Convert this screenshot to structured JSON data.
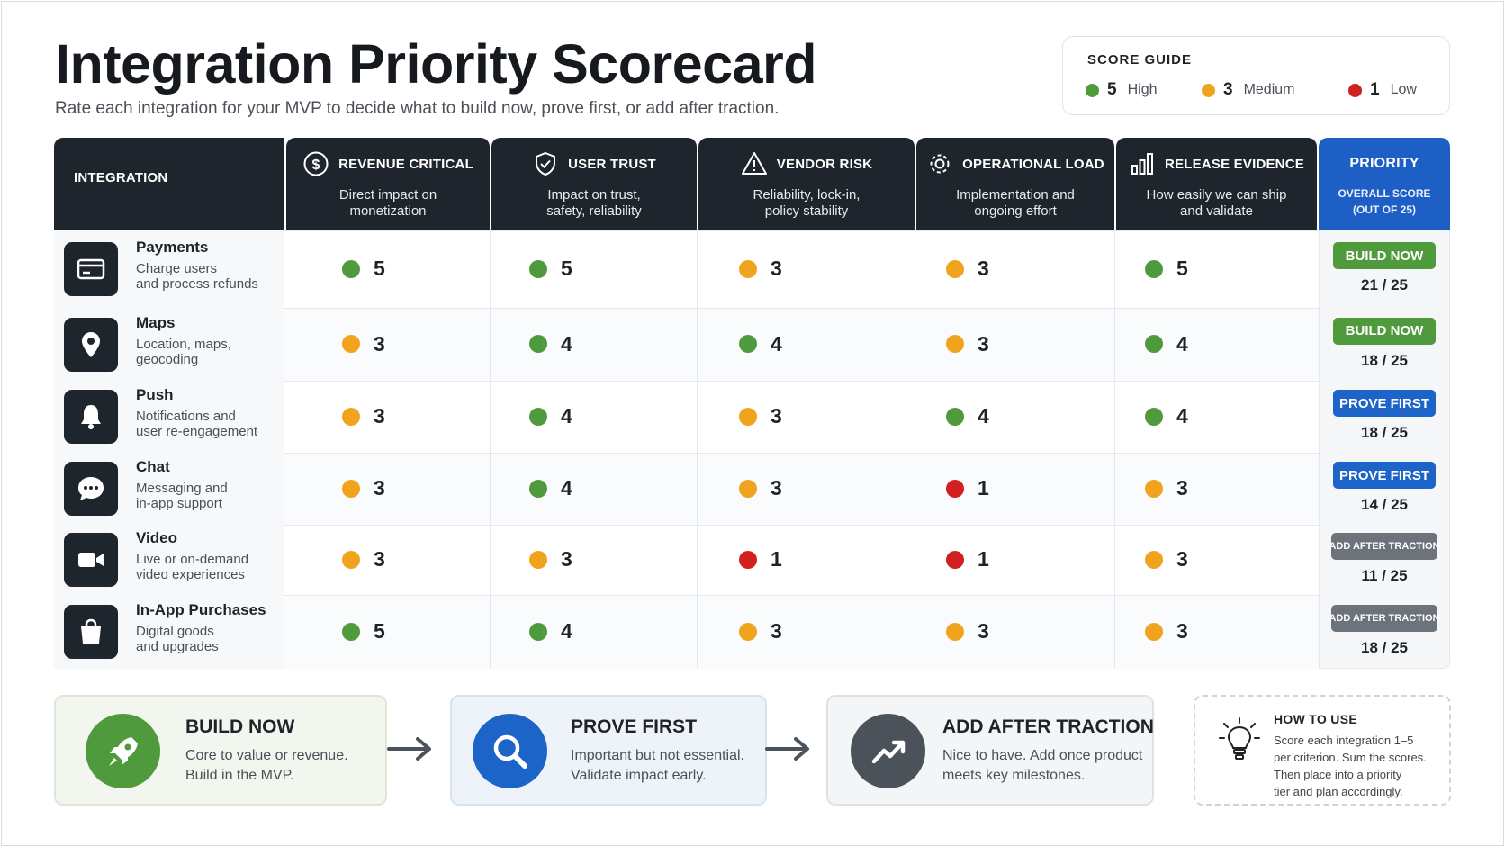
{
  "title": "Integration Priority Scorecard",
  "subtitle": "Rate each integration for your MVP to decide what to build now, prove first, or add after traction.",
  "score_guide": {
    "title": "SCORE GUIDE",
    "items": [
      {
        "value": "5",
        "label": "High",
        "color": "#4f9a3c"
      },
      {
        "value": "3",
        "label": "Medium",
        "color": "#f0a41d"
      },
      {
        "value": "1",
        "label": "Low",
        "color": "#d21f1f"
      }
    ]
  },
  "table": {
    "first_header": "INTEGRATION",
    "criteria": [
      {
        "title": "REVENUE CRITICAL",
        "desc1": "Direct impact on",
        "desc2": "monetization",
        "icon": "dollar-icon"
      },
      {
        "title": "USER TRUST",
        "desc1": "Impact on trust,",
        "desc2": "safety, reliability",
        "icon": "shield-icon"
      },
      {
        "title": "VENDOR RISK",
        "desc1": "Reliability, lock-in,",
        "desc2": "policy stability",
        "icon": "warning-icon"
      },
      {
        "title": "OPERATIONAL LOAD",
        "desc1": "Implementation and",
        "desc2": "ongoing effort",
        "icon": "gear-icon"
      },
      {
        "title": "RELEASE EVIDENCE",
        "desc1": "How easily we can ship",
        "desc2": "and validate",
        "icon": "bar-chart-icon"
      }
    ],
    "priority_header": {
      "title": "PRIORITY",
      "desc1": "OVERALL SCORE",
      "desc2": "(OUT OF 25)"
    },
    "rows": [
      {
        "name": "Payments",
        "desc1": "Charge users",
        "desc2": "and process refunds",
        "icon": "card-icon",
        "scores": [
          "5",
          "5",
          "3",
          "3",
          "5"
        ],
        "priority": "BUILD NOW",
        "tier": "build",
        "total": "21 / 25"
      },
      {
        "name": "Maps",
        "desc1": "Location, maps,",
        "desc2": "geocoding",
        "icon": "location-pin-icon",
        "scores": [
          "3",
          "4",
          "4",
          "3",
          "4"
        ],
        "priority": "BUILD NOW",
        "tier": "build",
        "total": "18 / 25"
      },
      {
        "name": "Push",
        "desc1": "Notifications and",
        "desc2": "user re-engagement",
        "icon": "bell-icon",
        "scores": [
          "3",
          "4",
          "3",
          "4",
          "4"
        ],
        "priority": "PROVE FIRST",
        "tier": "prove",
        "total": "18 / 25"
      },
      {
        "name": "Chat",
        "desc1": "Messaging and",
        "desc2": "in-app support",
        "icon": "chat-bubble-icon",
        "scores": [
          "3",
          "4",
          "3",
          "1",
          "3"
        ],
        "priority": "PROVE FIRST",
        "tier": "prove",
        "total": "14 / 25"
      },
      {
        "name": "Video",
        "desc1": "Live or on-demand",
        "desc2": "video experiences",
        "icon": "video-camera-icon",
        "scores": [
          "3",
          "3",
          "1",
          "1",
          "3"
        ],
        "priority": "ADD AFTER TRACTION",
        "tier": "after",
        "total": "11 / 25"
      },
      {
        "name": "In-App Purchases",
        "desc1": "Digital goods",
        "desc2": "and upgrades",
        "icon": "shopping-bag-icon",
        "scores": [
          "5",
          "4",
          "3",
          "3",
          "3"
        ],
        "priority": "ADD AFTER TRACTION",
        "tier": "after",
        "total": "18 / 25"
      }
    ]
  },
  "tiers": [
    {
      "title": "BUILD NOW",
      "desc1": "Core to value or revenue.",
      "desc2": "Build in the MVP.",
      "icon": "rocket-icon",
      "color": "#4f9a3c"
    },
    {
      "title": "PROVE FIRST",
      "desc1": "Important but not essential.",
      "desc2": "Validate impact early.",
      "icon": "magnifier-icon",
      "color": "#1d64c8"
    },
    {
      "title": "ADD AFTER TRACTION",
      "desc1": "Nice to have. Add once product",
      "desc2": "meets key milestones.",
      "icon": "trend-up-icon",
      "color": "#4b5259"
    }
  ],
  "how_to_use": {
    "title": "HOW TO USE",
    "line1": "Score each integration 1–5",
    "line2": "per criterion. Sum the scores.",
    "line3": "Then place into a priority",
    "line4": "tier and plan accordingly."
  },
  "colors": {
    "high": "#4f9a3c",
    "medium": "#f0a41d",
    "low": "#d21f1f",
    "build": "#4f9a3c",
    "prove": "#1d64c8",
    "after": "#6c737b"
  }
}
